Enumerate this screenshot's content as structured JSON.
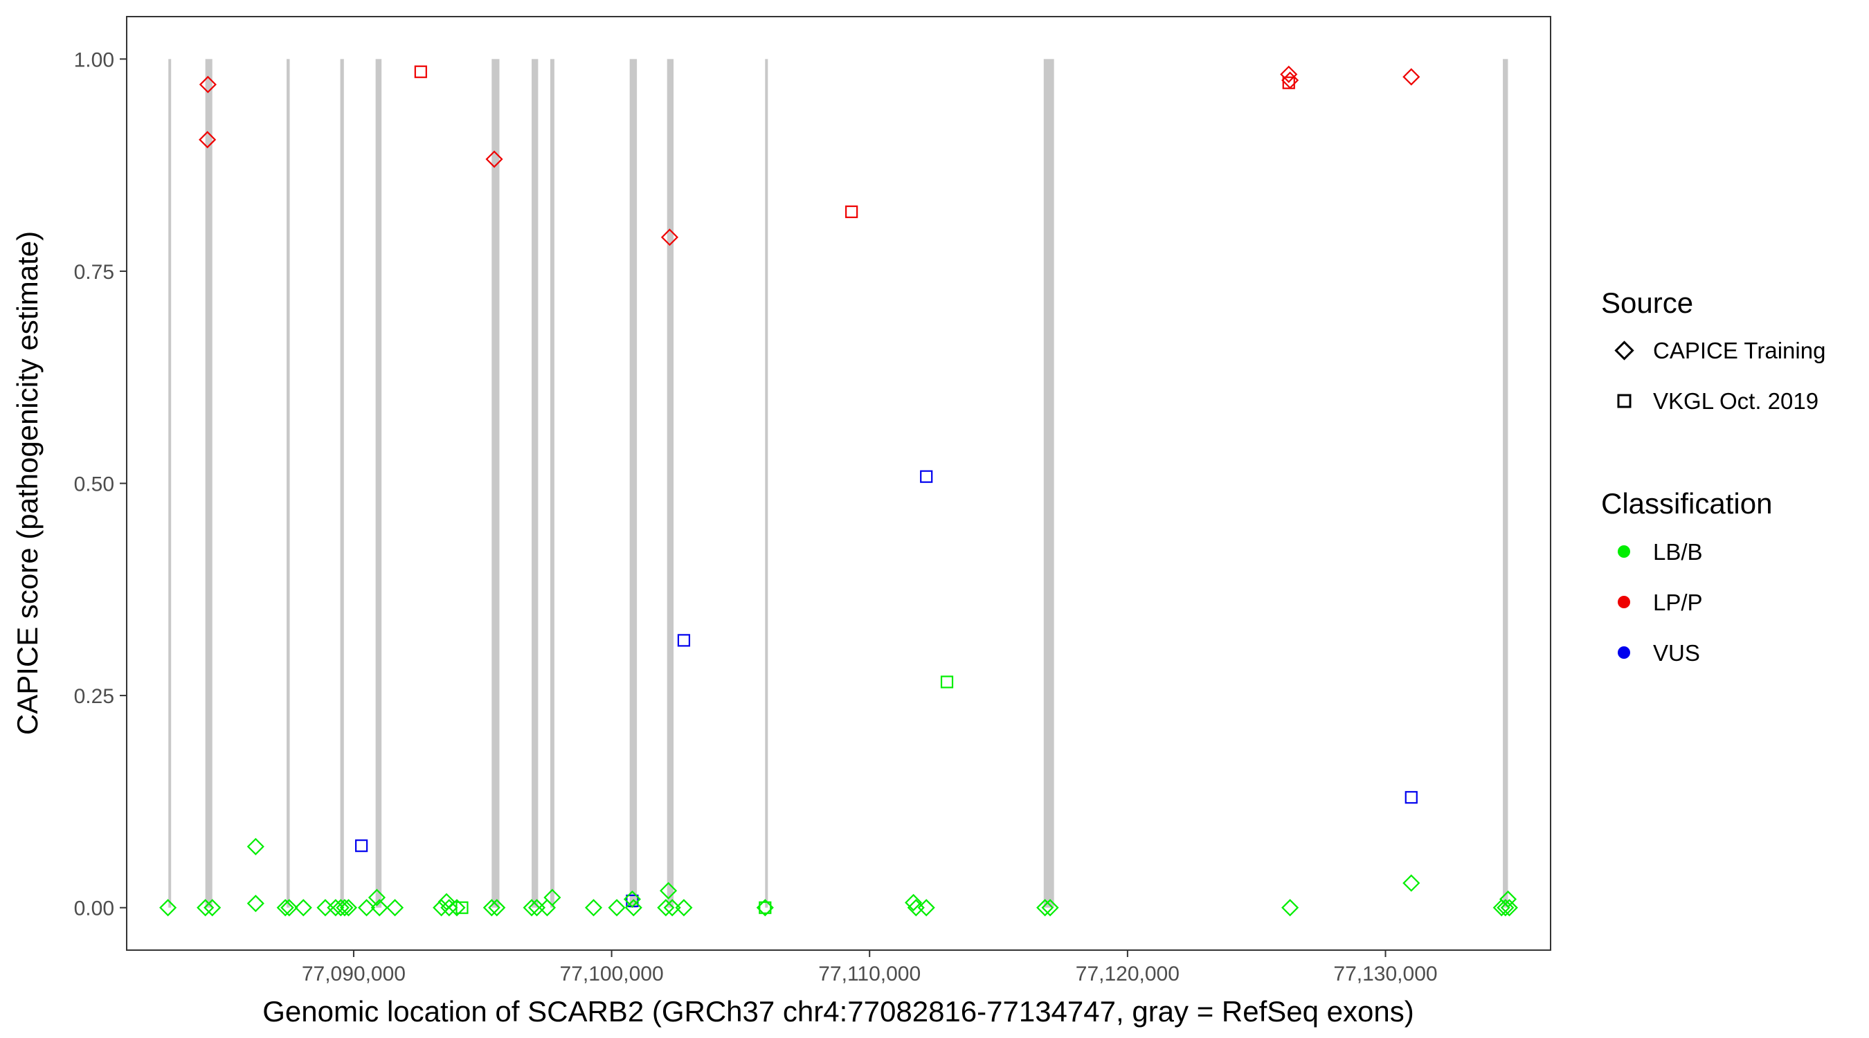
{
  "chart_data": {
    "type": "scatter",
    "title": "",
    "xlabel": "Genomic location of SCARB2 (GRCh37 chr4:77082816-77134747, gray = RefSeq exons)",
    "ylabel": "CAPICE score (pathogenicity estimate)",
    "xlim": [
      77081200,
      77136400
    ],
    "ylim": [
      -0.05,
      1.05
    ],
    "x_ticks": [
      77090000,
      77100000,
      77110000,
      77120000,
      77130000
    ],
    "x_tick_labels": [
      "77,090,000",
      "77,100,000",
      "77,110,000",
      "77,120,000",
      "77,130,000"
    ],
    "y_ticks": [
      0,
      0.25,
      0.5,
      0.75,
      1.0
    ],
    "y_tick_labels": [
      "0.00",
      "0.25",
      "0.50",
      "0.75",
      "1.00"
    ],
    "grid": false,
    "exons": [
      [
        77082816,
        77082900
      ],
      [
        77084250,
        77084520
      ],
      [
        77087400,
        77087520
      ],
      [
        77089480,
        77089620
      ],
      [
        77090850,
        77091080
      ],
      [
        77095350,
        77095650
      ],
      [
        77096900,
        77097150
      ],
      [
        77097620,
        77097780
      ],
      [
        77100700,
        77100980
      ],
      [
        77102150,
        77102400
      ],
      [
        77105950,
        77106050
      ],
      [
        77116750,
        77117150
      ],
      [
        77134550,
        77134747
      ]
    ],
    "legend": {
      "position": "right",
      "source": {
        "title": "Source",
        "items": [
          {
            "label": "CAPICE Training",
            "shape": "diamond"
          },
          {
            "label": "VKGL Oct. 2019",
            "shape": "square"
          }
        ]
      },
      "classification": {
        "title": "Classification",
        "items": [
          {
            "label": "LB/B",
            "color": "#00ee00"
          },
          {
            "label": "LP/P",
            "color": "#ee0000"
          },
          {
            "label": "VUS",
            "color": "#0000ee"
          }
        ]
      }
    },
    "series": [
      {
        "name": "CAPICE Training",
        "class": "LP/P",
        "shape": "diamond",
        "color": "#ee0000",
        "points": [
          [
            77084350,
            0.97
          ],
          [
            77084330,
            0.905
          ],
          [
            77095450,
            0.882
          ],
          [
            77102250,
            0.79
          ],
          [
            77126250,
            0.982
          ],
          [
            77126300,
            0.975
          ],
          [
            77131000,
            0.979
          ]
        ]
      },
      {
        "name": "VKGL Oct. 2019",
        "class": "LP/P",
        "shape": "square",
        "color": "#ee0000",
        "points": [
          [
            77092600,
            0.985
          ],
          [
            77109300,
            0.82
          ],
          [
            77126250,
            0.972
          ]
        ]
      },
      {
        "name": "VKGL Oct. 2019",
        "class": "VUS",
        "shape": "square",
        "color": "#0000ee",
        "points": [
          [
            77112200,
            0.508
          ],
          [
            77102800,
            0.315
          ],
          [
            77090300,
            0.073
          ],
          [
            77131000,
            0.13
          ],
          [
            77100800,
            0.008
          ]
        ]
      },
      {
        "name": "VKGL Oct. 2019",
        "class": "LB/B",
        "shape": "square",
        "color": "#00ee00",
        "points": [
          [
            77113000,
            0.266
          ],
          [
            77094200,
            0.0
          ],
          [
            77105950,
            0.0
          ]
        ]
      },
      {
        "name": "CAPICE Training",
        "class": "LB/B",
        "shape": "diamond",
        "color": "#00ee00",
        "points": [
          [
            77086200,
            0.072
          ],
          [
            77131000,
            0.029
          ],
          [
            77102200,
            0.02
          ],
          [
            77097700,
            0.012
          ],
          [
            77090900,
            0.012
          ],
          [
            77100800,
            0.01
          ],
          [
            77093600,
            0.007
          ],
          [
            77111700,
            0.006
          ],
          [
            77134750,
            0.01
          ],
          [
            77086200,
            0.005
          ],
          [
            77082800,
            0.0
          ],
          [
            77084250,
            0.0
          ],
          [
            77084520,
            0.0
          ],
          [
            77087350,
            0.0
          ],
          [
            77087500,
            0.0
          ],
          [
            77088050,
            0.0
          ],
          [
            77088900,
            0.0
          ],
          [
            77089300,
            0.0
          ],
          [
            77089500,
            0.0
          ],
          [
            77089650,
            0.0
          ],
          [
            77089800,
            0.0
          ],
          [
            77090500,
            0.0
          ],
          [
            77091000,
            0.0
          ],
          [
            77091600,
            0.0
          ],
          [
            77093400,
            0.0
          ],
          [
            77093700,
            0.0
          ],
          [
            77094000,
            0.0
          ],
          [
            77095350,
            0.0
          ],
          [
            77095550,
            0.0
          ],
          [
            77096900,
            0.0
          ],
          [
            77097100,
            0.0
          ],
          [
            77097500,
            0.0
          ],
          [
            77099300,
            0.0
          ],
          [
            77100200,
            0.0
          ],
          [
            77100850,
            0.0
          ],
          [
            77102100,
            0.0
          ],
          [
            77102350,
            0.0
          ],
          [
            77102800,
            0.0
          ],
          [
            77105950,
            0.0
          ],
          [
            77111800,
            0.0
          ],
          [
            77112200,
            0.0
          ],
          [
            77116800,
            0.0
          ],
          [
            77117000,
            0.0
          ],
          [
            77126300,
            0.0
          ],
          [
            77134500,
            0.0
          ],
          [
            77134650,
            0.0
          ],
          [
            77134800,
            0.0
          ]
        ]
      }
    ]
  }
}
